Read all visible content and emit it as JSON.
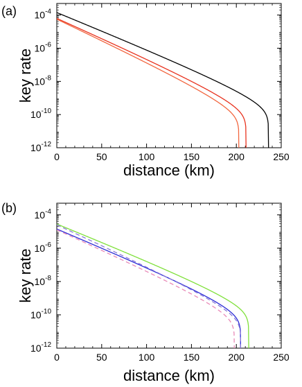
{
  "chart_data": [
    {
      "panel_label": "(a)",
      "type": "line",
      "xlabel": "distance (km)",
      "ylabel": "key rate",
      "xlim": [
        0,
        250
      ],
      "ylim": [
        1e-12,
        0.0005
      ],
      "yscale": "log",
      "xticks": [
        "0",
        "50",
        "100",
        "150",
        "200",
        "250"
      ],
      "yticks": [
        {
          "base": "10",
          "exp": "-4",
          "value": 0.0001
        },
        {
          "base": "10",
          "exp": "-6",
          "value": 1e-06
        },
        {
          "base": "10",
          "exp": "-8",
          "value": 1e-08
        },
        {
          "base": "10",
          "exp": "-10",
          "value": 1e-10
        },
        {
          "base": "10",
          "exp": "-12",
          "value": 1e-12
        }
      ],
      "grid": false,
      "legend": "none",
      "series": [
        {
          "color": "#000000",
          "dash": "solid",
          "log10_y_at_0": -3.85,
          "log10_y_at_150": -7.3,
          "cutoff_x": 236
        },
        {
          "color": "#e8321e",
          "dash": "solid",
          "log10_y_at_0": -4.2,
          "log10_y_at_150": -8.0,
          "cutoff_x": 211
        },
        {
          "color": "#f2663f",
          "dash": "solid",
          "log10_y_at_0": -4.25,
          "log10_y_at_150": -8.3,
          "cutoff_x": 203
        }
      ]
    },
    {
      "panel_label": "(b)",
      "type": "line",
      "xlabel": "distance (km)",
      "ylabel": "key rate",
      "xlim": [
        0,
        250
      ],
      "ylim": [
        1e-12,
        0.0005
      ],
      "yscale": "log",
      "xticks": [
        "0",
        "50",
        "100",
        "150",
        "200",
        "250"
      ],
      "yticks": [
        {
          "base": "10",
          "exp": "-4",
          "value": 0.0001
        },
        {
          "base": "10",
          "exp": "-6",
          "value": 1e-06
        },
        {
          "base": "10",
          "exp": "-8",
          "value": 1e-08
        },
        {
          "base": "10",
          "exp": "-10",
          "value": 1e-10
        },
        {
          "base": "10",
          "exp": "-12",
          "value": 1e-12
        }
      ],
      "grid": false,
      "legend": "none",
      "series": [
        {
          "color": "#7fe03a",
          "dash": "solid",
          "log10_y_at_0": -4.55,
          "log10_y_at_150": -8.0,
          "cutoff_x": 214
        },
        {
          "color": "#2b2bd6",
          "dash": "solid",
          "log10_y_at_0": -4.85,
          "log10_y_at_150": -8.45,
          "cutoff_x": 205
        },
        {
          "color": "#8a7ad8",
          "dash": "dashed",
          "log10_y_at_0": -4.6,
          "log10_y_at_150": -8.5,
          "cutoff_x": 205
        },
        {
          "color": "#e98ab8",
          "dash": "dashed",
          "log10_y_at_0": -4.9,
          "log10_y_at_150": -8.75,
          "cutoff_x": 198
        }
      ]
    }
  ]
}
